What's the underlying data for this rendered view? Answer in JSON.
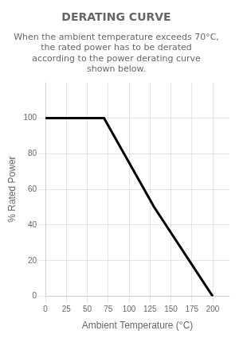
{
  "chart_data": {
    "type": "line",
    "title": "DERATING CURVE",
    "subtitle": "When the ambient temperature exceeds 70°C, the rated power has to be derated according to the power derating curve shown below.",
    "x": [
      0,
      70,
      130,
      200
    ],
    "values": [
      100,
      100,
      50,
      0
    ],
    "color": "#000000",
    "xlabel": "Ambient Temperature (°C)",
    "ylabel": "% Rated Power",
    "xlim": [
      0,
      220
    ],
    "xticks": [
      0,
      25,
      50,
      75,
      100,
      125,
      150,
      175,
      200
    ],
    "ylim": [
      0,
      120
    ],
    "yticks": [
      0,
      20,
      40,
      60,
      80,
      100
    ],
    "grid": true
  }
}
